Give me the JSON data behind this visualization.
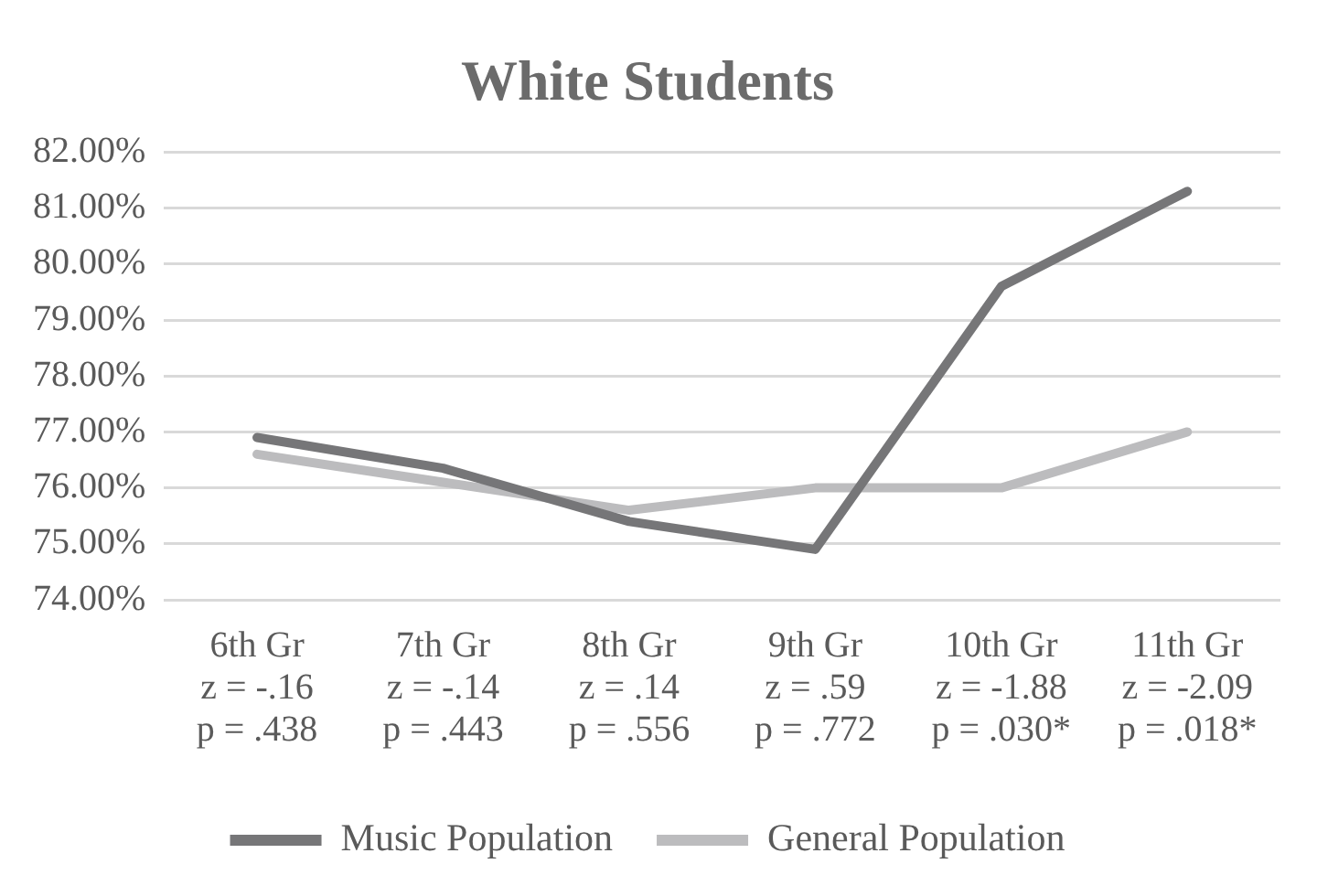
{
  "chart_data": {
    "type": "line",
    "title": "White Students",
    "categories": [
      "6th Gr\nz = -.16\np = .438",
      "7th Gr\nz = -.14\np = .443",
      "8th Gr\nz = .14\np = .556",
      "9th Gr\nz = .59\np = .772",
      "10th Gr\nz = -1.88\np = .030*",
      "11th Gr\nz = -2.09\np = .018*"
    ],
    "series": [
      {
        "name": "Music Population",
        "color": "#767678",
        "values": [
          76.9,
          76.35,
          75.4,
          74.9,
          79.6,
          81.3
        ]
      },
      {
        "name": "General Population",
        "color": "#bcbcbe",
        "values": [
          76.6,
          76.1,
          75.6,
          76.0,
          76.0,
          77.0
        ]
      }
    ],
    "ylim": [
      74,
      82
    ],
    "yticks": [
      {
        "value": 74,
        "label": "74.00%"
      },
      {
        "value": 75,
        "label": "75.00%"
      },
      {
        "value": 76,
        "label": "76.00%"
      },
      {
        "value": 77,
        "label": "77.00%"
      },
      {
        "value": 78,
        "label": "78.00%"
      },
      {
        "value": 79,
        "label": "79.00%"
      },
      {
        "value": 80,
        "label": "80.00%"
      },
      {
        "value": 81,
        "label": "81.00%"
      },
      {
        "value": 82,
        "label": "82.00%"
      }
    ],
    "grid": "y",
    "legend": "bottom",
    "marker": "none",
    "line_style": "solid"
  }
}
